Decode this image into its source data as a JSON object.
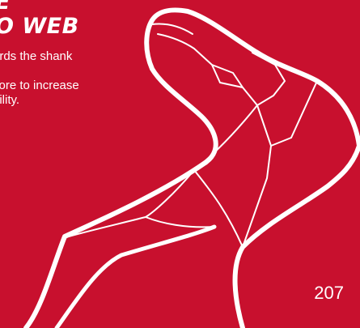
{
  "page": {
    "background_color": "#c8102e",
    "foreground_color": "#ffffff",
    "heading_lines": [
      "E",
      "O WEB"
    ],
    "paragraphs": [
      "ards the shank",
      "core to increase\nbility."
    ],
    "page_number": "207",
    "illustration": "hook-point-outline"
  }
}
